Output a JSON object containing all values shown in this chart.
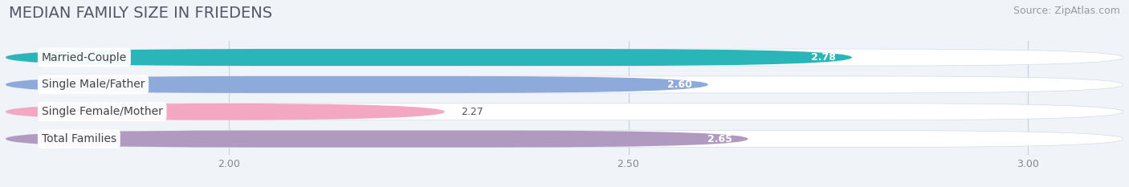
{
  "title": "MEDIAN FAMILY SIZE IN FRIEDENS",
  "source": "Source: ZipAtlas.com",
  "categories": [
    "Married-Couple",
    "Single Male/Father",
    "Single Female/Mother",
    "Total Families"
  ],
  "values": [
    2.78,
    2.6,
    2.27,
    2.65
  ],
  "bar_colors": [
    "#2ab5b8",
    "#8eaadb",
    "#f4a7c0",
    "#b09abf"
  ],
  "xmin": 1.72,
  "xmax": 3.12,
  "xticks": [
    2.0,
    2.5,
    3.0
  ],
  "bar_height": 0.62,
  "background_color": "#f0f4f8",
  "bar_bg_color": "#e8eef4",
  "plot_bg_color": "#ffffff",
  "title_fontsize": 14,
  "source_fontsize": 9,
  "label_fontsize": 10,
  "value_fontsize": 9
}
